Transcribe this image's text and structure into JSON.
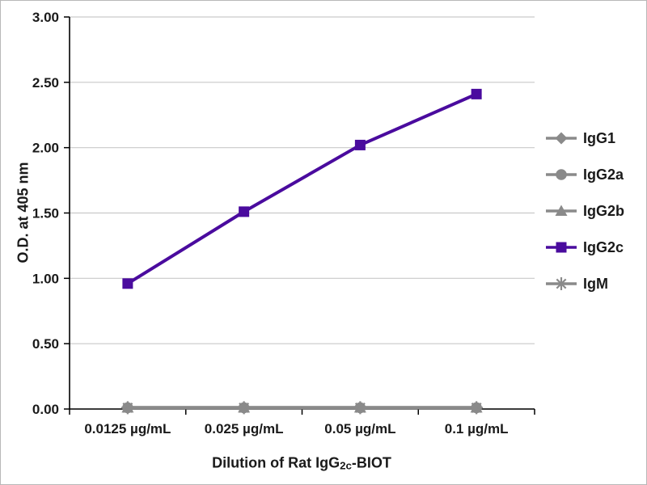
{
  "figure": {
    "background": "#ffffff",
    "border_color": "#b8b8b8",
    "grid_color": "#c9c9c9",
    "axis_color": "#000000",
    "text_color": "#1a1a1a"
  },
  "chart_data": {
    "type": "line",
    "title": "",
    "xlabel": "Dilution of Rat IgG2c-BIOT",
    "xlabel_parts": [
      {
        "text": "Dilution of Rat IgG",
        "sub": false
      },
      {
        "text": "2c",
        "sub": true
      },
      {
        "text": "-BIOT",
        "sub": false
      }
    ],
    "ylabel": "O.D. at 405 nm",
    "categories": [
      "0.0125 µg/mL",
      "0.025 µg/mL",
      "0.05 µg/mL",
      "0.1 µg/mL"
    ],
    "y_ticks": [
      0.0,
      0.5,
      1.0,
      1.5,
      2.0,
      2.5,
      3.0
    ],
    "y_tick_labels": [
      "0.00",
      "0.50",
      "1.00",
      "1.50",
      "2.00",
      "2.50",
      "3.00"
    ],
    "ylim": [
      0,
      3.0
    ],
    "grid": true,
    "legend_position": "right",
    "accent_color": "#4a0b9e",
    "muted_color": "#8a8a8a",
    "series": [
      {
        "name": "IgG1",
        "marker": "diamond",
        "color": "#8a8a8a",
        "values": [
          0.01,
          0.01,
          0.01,
          0.01
        ]
      },
      {
        "name": "IgG2a",
        "marker": "circle",
        "color": "#8a8a8a",
        "values": [
          0.01,
          0.01,
          0.01,
          0.01
        ]
      },
      {
        "name": "IgG2b",
        "marker": "triangle",
        "color": "#8a8a8a",
        "values": [
          0.01,
          0.01,
          0.01,
          0.01
        ]
      },
      {
        "name": "IgG2c",
        "marker": "square",
        "color": "#4a0b9e",
        "values": [
          0.96,
          1.51,
          2.02,
          2.41
        ]
      },
      {
        "name": "IgM",
        "marker": "asterisk",
        "color": "#8a8a8a",
        "values": [
          0.01,
          0.01,
          0.01,
          0.01
        ]
      }
    ]
  }
}
